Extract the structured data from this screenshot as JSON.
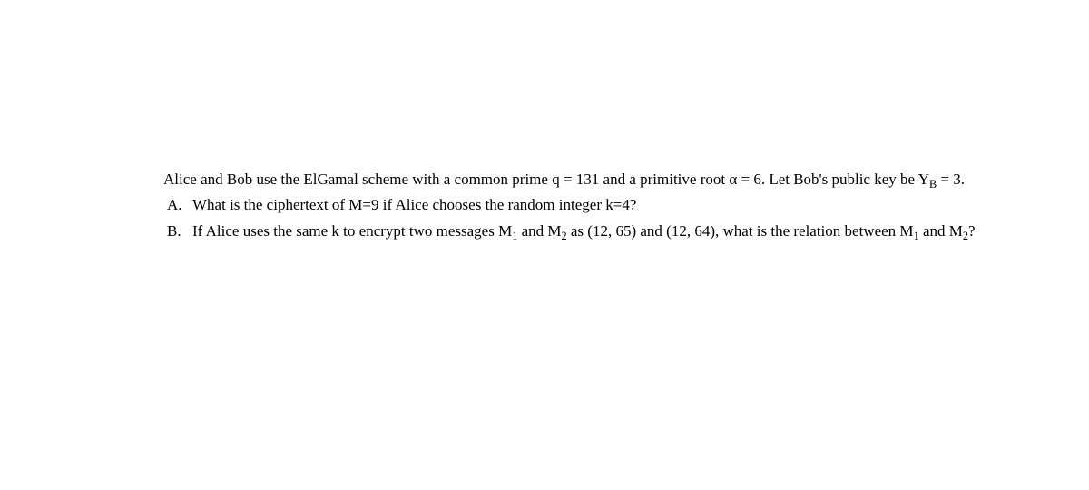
{
  "intro": {
    "part1": "Alice and Bob use the ElGamal scheme with a common prime q = 131 and a primitive root α = 6. Let Bob's public key be Y",
    "sub1": "B",
    "part2": " = 3."
  },
  "questions": [
    {
      "label": "A.",
      "text_parts": [
        {
          "t": "What is the ciphertext of M=9 if Alice chooses the random integer k=4?"
        }
      ]
    },
    {
      "label": "B.",
      "text_parts": [
        {
          "t": "If Alice uses the same k to encrypt two messages M"
        },
        {
          "t": "1",
          "sub": true
        },
        {
          "t": " and M"
        },
        {
          "t": "2",
          "sub": true
        },
        {
          "t": " as (12, 65) and (12, 64), what is the relation between M"
        },
        {
          "t": "1",
          "sub": true
        },
        {
          "t": " and M"
        },
        {
          "t": "2",
          "sub": true
        },
        {
          "t": "?"
        }
      ]
    }
  ]
}
